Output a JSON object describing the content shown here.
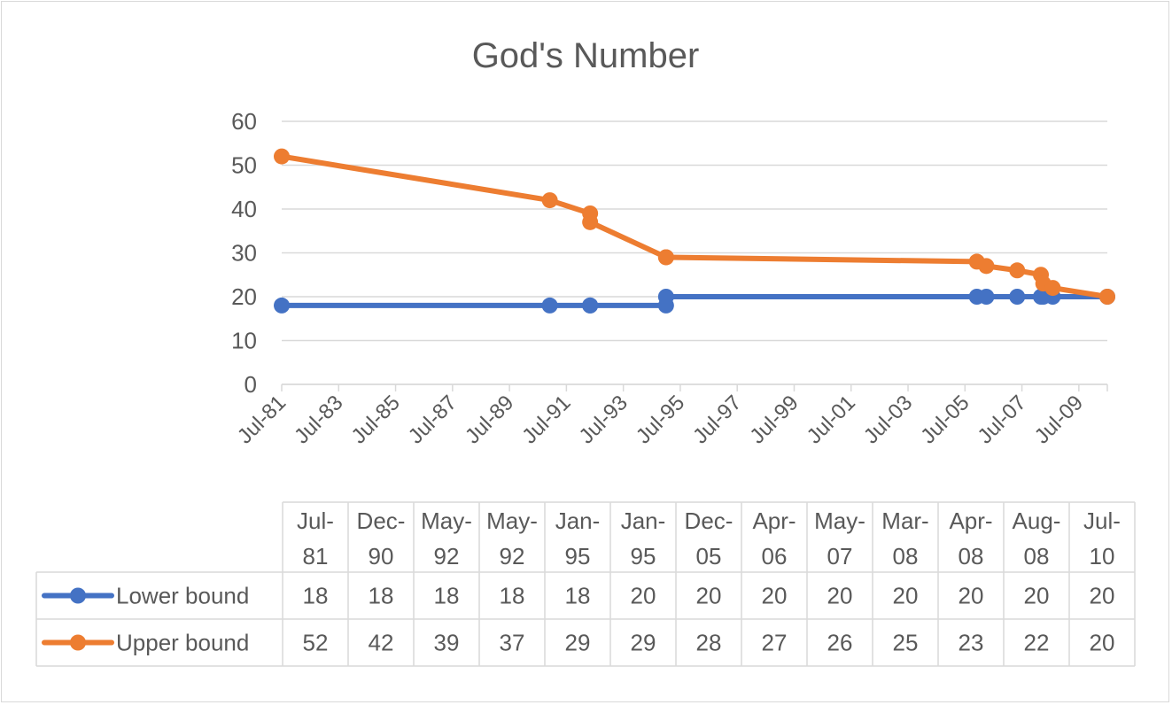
{
  "chart_data": {
    "type": "line",
    "title": "God's Number",
    "xlabel": "",
    "ylabel": "",
    "ylim": [
      0,
      60
    ],
    "yticks": [
      "0",
      "10",
      "20",
      "30",
      "40",
      "50",
      "60"
    ],
    "xticks": [
      "Jul-81",
      "Jul-83",
      "Jul-85",
      "Jul-87",
      "Jul-89",
      "Jul-91",
      "Jul-93",
      "Jul-95",
      "Jul-97",
      "Jul-99",
      "Jul-01",
      "Jul-03",
      "Jul-05",
      "Jul-07",
      "Jul-09"
    ],
    "grid": true,
    "legend": "data-table",
    "categories": [
      [
        "Jul-",
        "81"
      ],
      [
        "Dec-",
        "90"
      ],
      [
        "May-",
        "92"
      ],
      [
        "May-",
        "92"
      ],
      [
        "Jan-",
        "95"
      ],
      [
        "Jan-",
        "95"
      ],
      [
        "Dec-",
        "05"
      ],
      [
        "Apr-",
        "06"
      ],
      [
        "May-",
        "07"
      ],
      [
        "Mar-",
        "08"
      ],
      [
        "Apr-",
        "08"
      ],
      [
        "Aug-",
        "08"
      ],
      [
        "Jul-",
        "10"
      ]
    ],
    "dates": [
      "1981-07",
      "1990-12",
      "1992-05",
      "1992-05",
      "1995-01",
      "1995-01",
      "2005-12",
      "2006-04",
      "2007-05",
      "2008-03",
      "2008-04",
      "2008-08",
      "2010-07"
    ],
    "series": [
      {
        "name": "Lower bound",
        "color": "#4472c4",
        "values": [
          18,
          18,
          18,
          18,
          18,
          20,
          20,
          20,
          20,
          20,
          20,
          20,
          20
        ]
      },
      {
        "name": "Upper bound",
        "color": "#ed7d31",
        "values": [
          52,
          42,
          39,
          37,
          29,
          29,
          28,
          27,
          26,
          25,
          23,
          22,
          20
        ]
      }
    ]
  }
}
